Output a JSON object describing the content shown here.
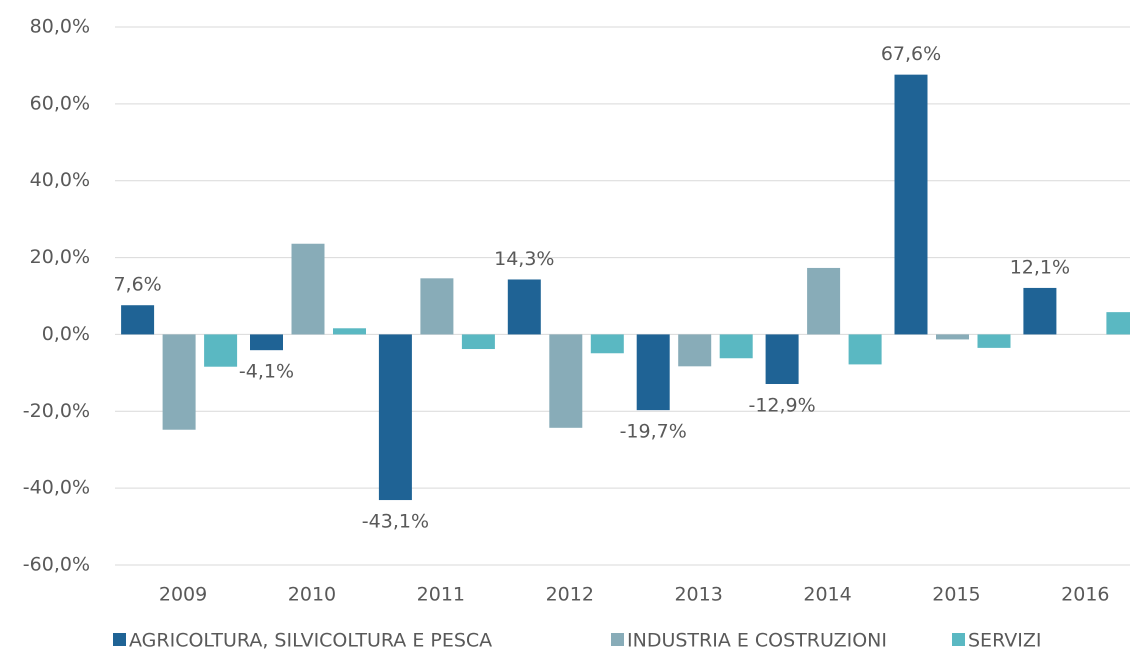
{
  "chart_data": {
    "type": "bar",
    "categories": [
      "2009",
      "2010",
      "2011",
      "2012",
      "2013",
      "2014",
      "2015",
      "2016"
    ],
    "series": [
      {
        "name": "AGRICOLTURA, SILVICOLTURA E PESCA",
        "color": "#1f6395",
        "values": [
          7.6,
          -4.1,
          -43.1,
          14.3,
          -19.7,
          -12.9,
          67.6,
          12.1
        ],
        "value_labels": [
          "7,6%",
          "-4,1%",
          "-43,1%",
          "14,3%",
          "-19,7%",
          "-12,9%",
          "67,6%",
          "12,1%"
        ]
      },
      {
        "name": "INDUSTRIA E COSTRUZIONI",
        "color": "#88acb8",
        "values": [
          -24.8,
          23.6,
          14.6,
          -24.3,
          -8.3,
          17.3,
          -1.3,
          0
        ]
      },
      {
        "name": "SERVIZI",
        "color": "#5ab8c2",
        "values": [
          -8.4,
          1.6,
          -3.8,
          -4.9,
          -6.2,
          -7.8,
          -3.5,
          5.8
        ]
      }
    ],
    "ylim": [
      -60,
      80
    ],
    "yticks": [
      {
        "value": -60,
        "label": "-60,0%"
      },
      {
        "value": -40,
        "label": "-40,0%"
      },
      {
        "value": -20,
        "label": "-20,0%"
      },
      {
        "value": 0,
        "label": "0,0%"
      },
      {
        "value": 20,
        "label": "20,0%"
      },
      {
        "value": 40,
        "label": "40,0%"
      },
      {
        "value": 60,
        "label": "60,0%"
      },
      {
        "value": 80,
        "label": "80,0%"
      }
    ],
    "grid": true,
    "legend": "bottom"
  }
}
